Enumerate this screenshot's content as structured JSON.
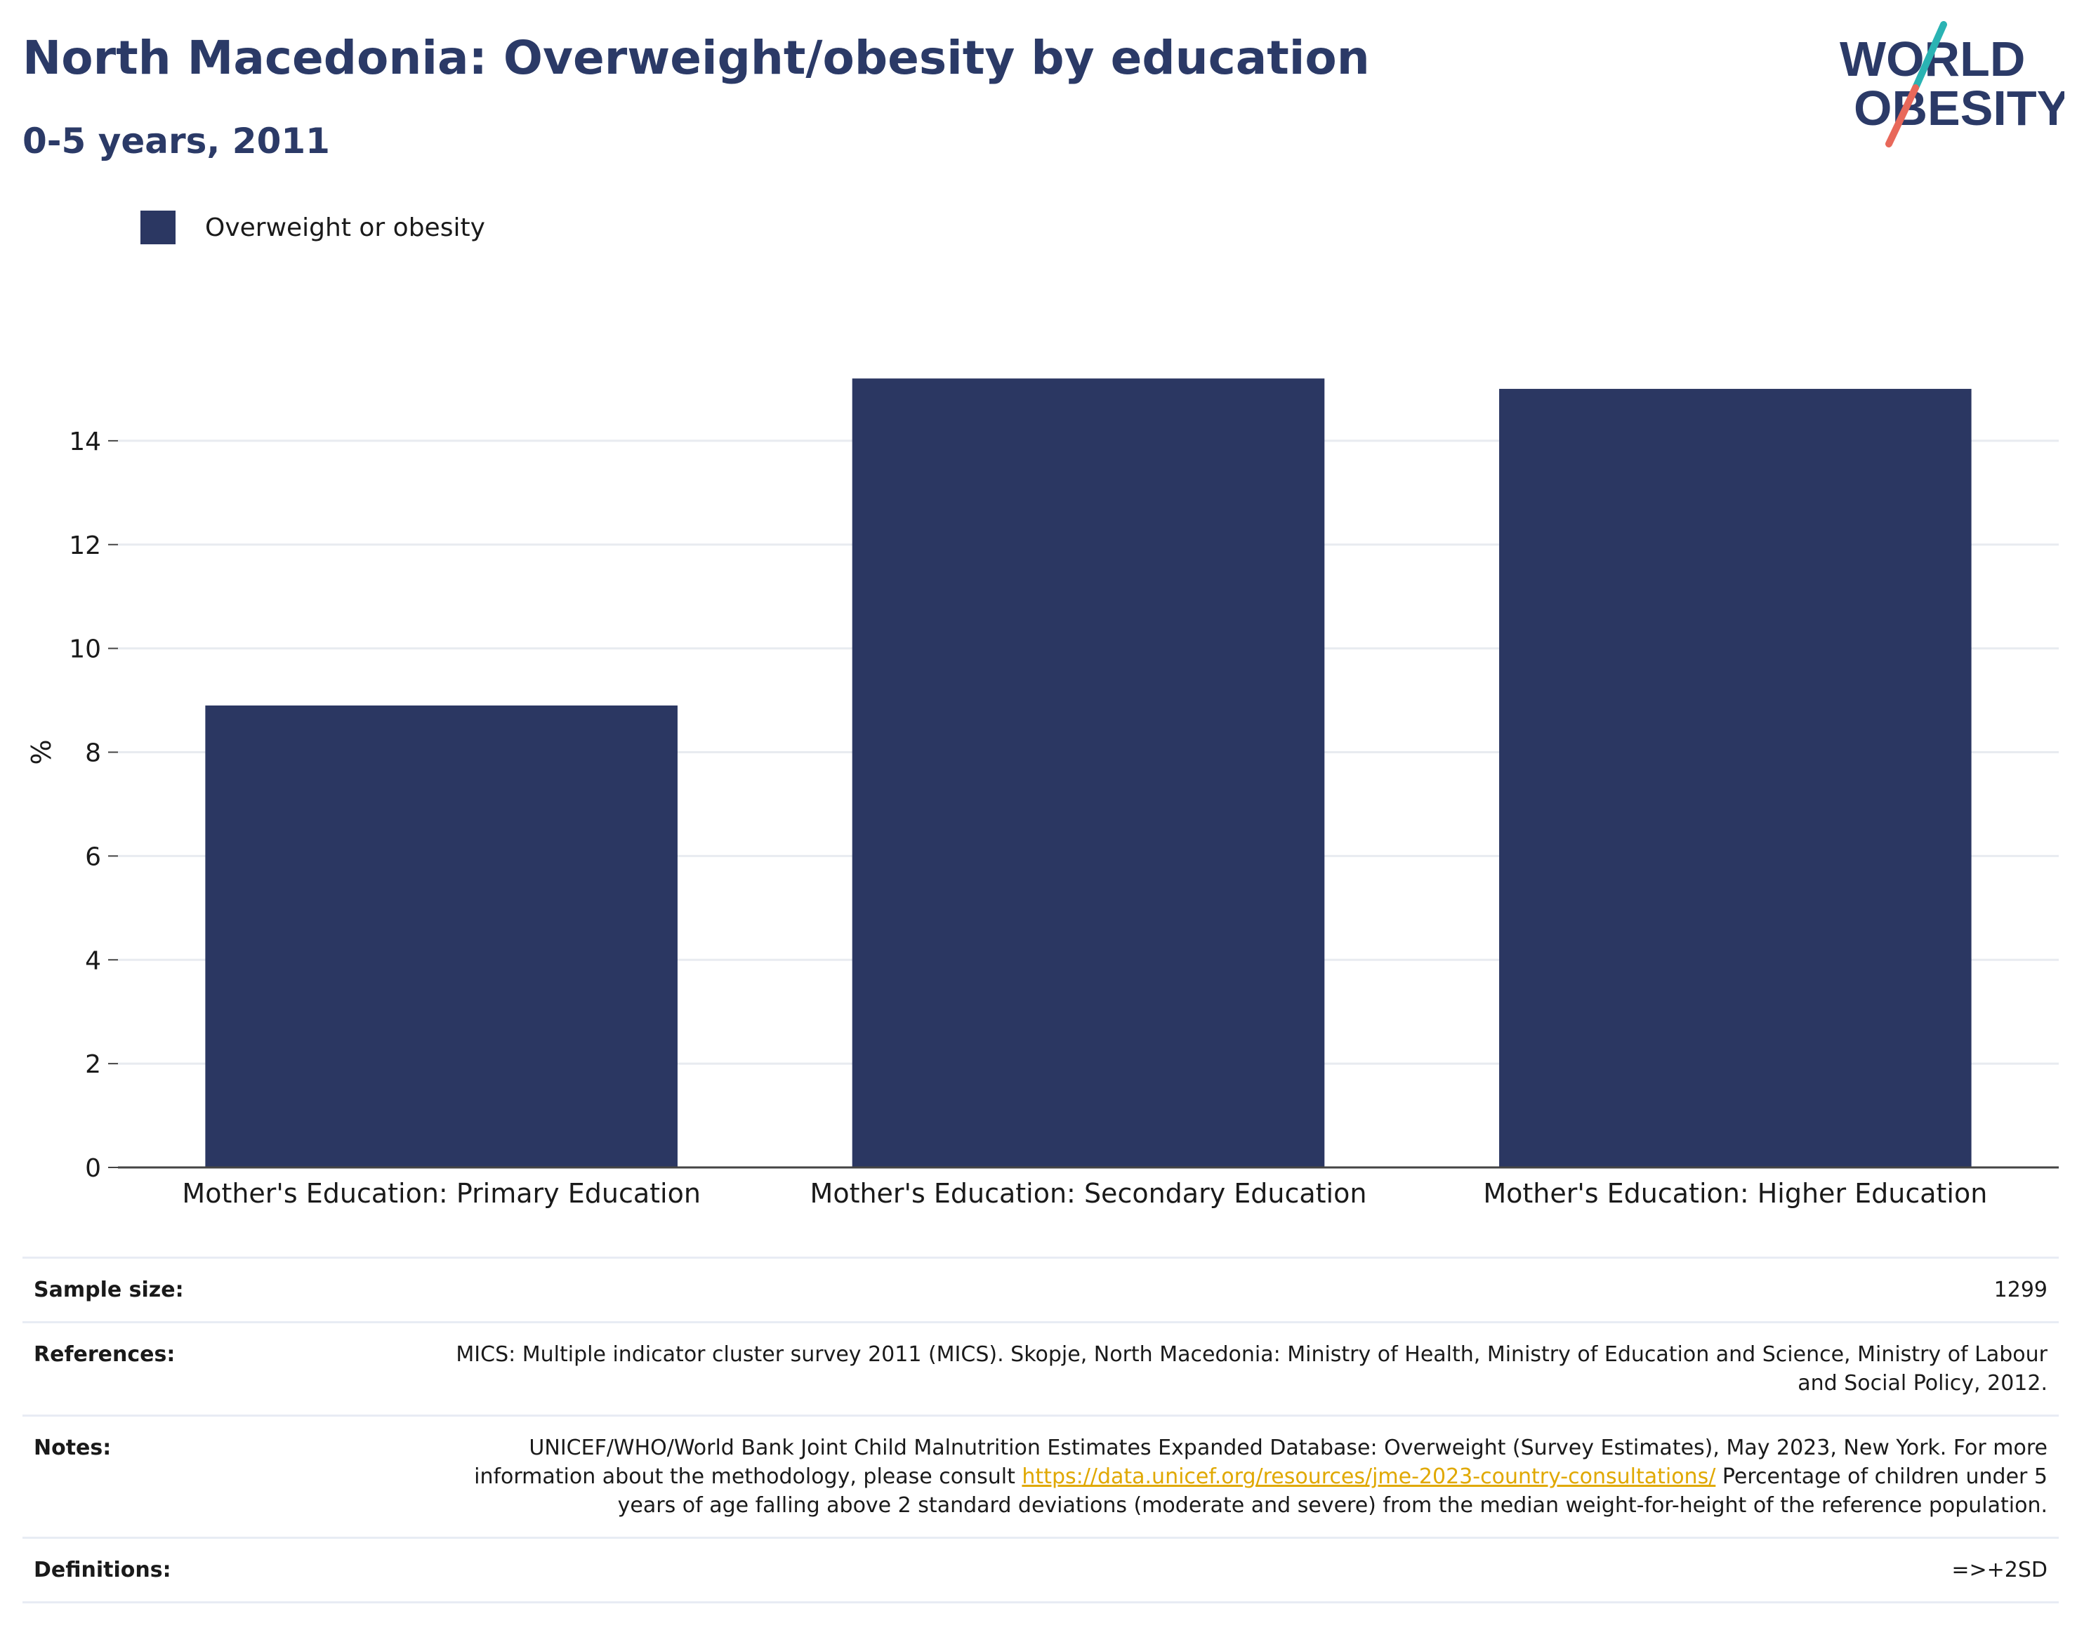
{
  "header": {
    "title": "North Macedonia: Overweight/obesity by education",
    "subtitle": "0-5 years, 2011"
  },
  "logo": {
    "line1": "WORLD",
    "line2": "OBESITY",
    "text_color": "#2b3a67",
    "slash_top_color": "#2ab3b3",
    "slash_bottom_color": "#e8685a"
  },
  "legend": {
    "items": [
      {
        "label": "Overweight or obesity",
        "color": "#2b3762"
      }
    ]
  },
  "chart_data": {
    "type": "bar",
    "categories": [
      "Mother's Education: Primary Education",
      "Mother's Education: Secondary Education",
      "Mother's Education: Higher Education"
    ],
    "series": [
      {
        "name": "Overweight or obesity",
        "values": [
          8.9,
          15.2,
          15.0
        ],
        "color": "#2b3762"
      }
    ],
    "ylabel": "%",
    "ylim": [
      0,
      16
    ],
    "yticks": [
      0,
      2,
      4,
      6,
      8,
      10,
      12,
      14
    ],
    "grid": true,
    "legend_position": "top-left"
  },
  "info": {
    "sample_size_label": "Sample size:",
    "sample_size_value": "1299",
    "references_label": "References:",
    "references_value": "MICS: Multiple indicator cluster survey 2011 (MICS). Skopje, North Macedonia: Ministry of Health, Ministry of Education and Science, Ministry of Labour and Social Policy, 2012.",
    "notes_label": "Notes:",
    "notes_text_1": "UNICEF/WHO/World Bank Joint Child Malnutrition Estimates Expanded Database: Overweight (Survey Estimates), May 2023, New York. For more information about the methodology, please consult ",
    "notes_link": "https://data.unicef.org/resources/jme-2023-country-consultations/",
    "notes_text_2": " Percentage of children under 5 years of age falling above 2 standard deviations (moderate and severe) from the median weight-for-height of the reference population.",
    "definitions_label": "Definitions:",
    "definitions_value": "=>+2SD"
  }
}
